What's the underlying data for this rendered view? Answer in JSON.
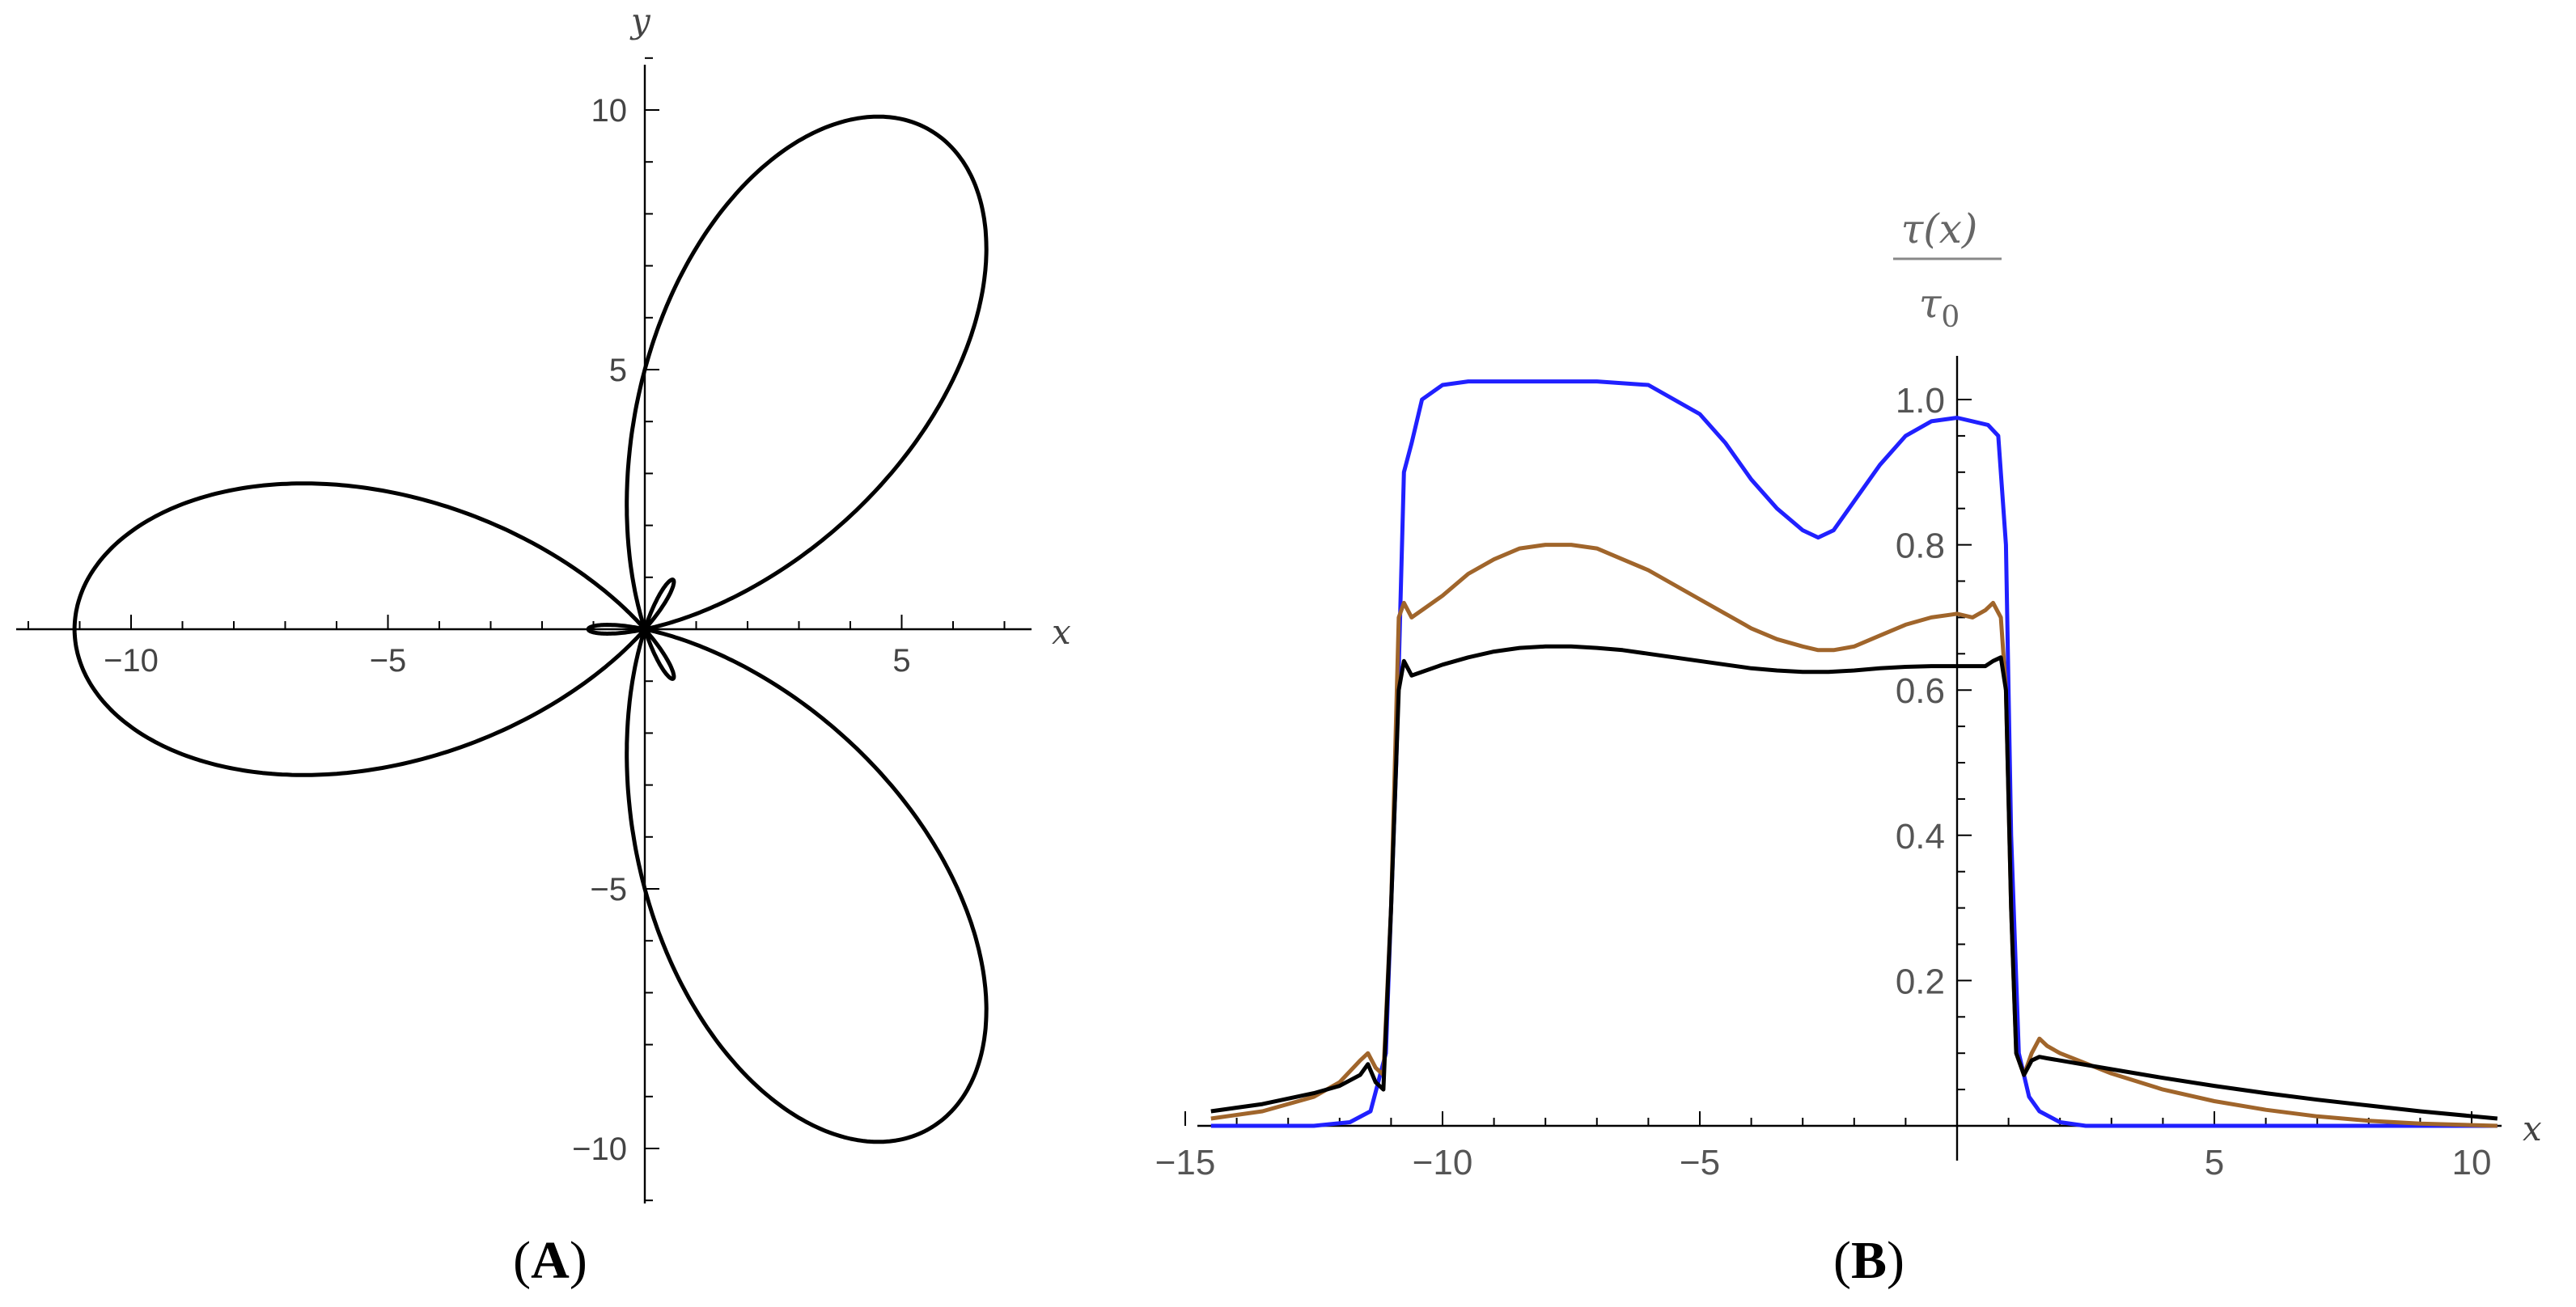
{
  "figure": {
    "panels": [
      "A",
      "B"
    ]
  },
  "chart_data": [
    {
      "panel": "A",
      "type": "line",
      "title": "",
      "xlabel": "x",
      "ylabel": "y",
      "xlim": [
        -12.5,
        7.5
      ],
      "ylim": [
        -11,
        11
      ],
      "xticks": [
        -10,
        -5,
        5
      ],
      "xtick_labels": [
        "−10",
        "−5",
        "5"
      ],
      "yticks": [
        -10,
        -5,
        5,
        10
      ],
      "ytick_labels": [
        "−10",
        "−5",
        "5",
        "10"
      ],
      "panel_label_open": "(",
      "panel_label_letter": "A",
      "panel_label_close": ")",
      "series": [
        {
          "name": "three-lobed curve",
          "color": "#000000",
          "parametric": "r(theta) = 5 + 6.1*cos(3*theta + pi)",
          "x_range": [
            -11.1,
            6.5
          ],
          "y_range": [
            -9.7,
            9.7
          ]
        }
      ]
    },
    {
      "panel": "B",
      "type": "line",
      "title": "",
      "xlabel": "x",
      "ylabel_numerator": "τ(x)",
      "ylabel_denominator": "τ",
      "ylabel_denominator_sub": "0",
      "xlim": [
        -15.5,
        11
      ],
      "ylim": [
        0,
        1.05
      ],
      "xticks": [
        -15,
        -10,
        -5,
        5,
        10
      ],
      "xtick_labels": [
        "−15",
        "−10",
        "−5",
        "5",
        "10"
      ],
      "yticks": [
        0.2,
        0.4,
        0.6,
        0.8,
        1.0
      ],
      "ytick_labels": [
        "0.2",
        "0.4",
        "0.6",
        "0.8",
        "1.0"
      ],
      "panel_label_open": "(",
      "panel_label_letter": "B",
      "panel_label_close": ")",
      "series": [
        {
          "name": "blue",
          "color": "#2020ff",
          "x": [
            -14.5,
            -12.5,
            -11.8,
            -11.4,
            -11.1,
            -10.9,
            -10.75,
            -10.6,
            -10.4,
            -10,
            -9.5,
            -8.5,
            -7,
            -6,
            -5,
            -4.5,
            -4,
            -3.5,
            -3,
            -2.7,
            -2.4,
            -2,
            -1.5,
            -1,
            -0.5,
            0,
            0.3,
            0.6,
            0.8,
            0.95,
            1.05,
            1.2,
            1.4,
            1.6,
            2,
            2.5,
            4,
            10.5
          ],
          "y": [
            0,
            0,
            0.005,
            0.02,
            0.1,
            0.5,
            0.9,
            0.94,
            1.0,
            1.02,
            1.025,
            1.025,
            1.025,
            1.02,
            0.98,
            0.94,
            0.89,
            0.85,
            0.82,
            0.81,
            0.82,
            0.86,
            0.91,
            0.95,
            0.97,
            0.975,
            0.97,
            0.965,
            0.95,
            0.8,
            0.4,
            0.1,
            0.04,
            0.02,
            0.005,
            0,
            0,
            0
          ]
        },
        {
          "name": "brown",
          "color": "#a0652b",
          "x": [
            -14.5,
            -13.5,
            -12.5,
            -12,
            -11.6,
            -11.45,
            -11.3,
            -11.15,
            -11.0,
            -10.85,
            -10.75,
            -10.6,
            -10.4,
            -10.0,
            -9.5,
            -9,
            -8.5,
            -8,
            -7.5,
            -7,
            -6.5,
            -6,
            -5.5,
            -5,
            -4.5,
            -4,
            -3.5,
            -3,
            -2.7,
            -2.4,
            -2,
            -1.5,
            -1,
            -0.5,
            0,
            0.3,
            0.55,
            0.7,
            0.85,
            0.95,
            1.05,
            1.15,
            1.3,
            1.45,
            1.6,
            1.75,
            2,
            3,
            4,
            5,
            6,
            7,
            8,
            9,
            10.5
          ],
          "y": [
            0.01,
            0.02,
            0.04,
            0.06,
            0.09,
            0.1,
            0.08,
            0.07,
            0.3,
            0.7,
            0.72,
            0.7,
            0.71,
            0.73,
            0.76,
            0.78,
            0.795,
            0.8,
            0.8,
            0.795,
            0.78,
            0.765,
            0.745,
            0.725,
            0.705,
            0.685,
            0.67,
            0.66,
            0.655,
            0.655,
            0.66,
            0.675,
            0.69,
            0.7,
            0.705,
            0.7,
            0.71,
            0.72,
            0.7,
            0.6,
            0.3,
            0.1,
            0.07,
            0.1,
            0.12,
            0.11,
            0.1,
            0.072,
            0.05,
            0.034,
            0.022,
            0.013,
            0.007,
            0.003,
            0
          ]
        },
        {
          "name": "black",
          "color": "#000000",
          "x": [
            -14.5,
            -13.5,
            -12.5,
            -12,
            -11.6,
            -11.45,
            -11.3,
            -11.15,
            -11.0,
            -10.85,
            -10.75,
            -10.6,
            -10.4,
            -10.0,
            -9.5,
            -9,
            -8.5,
            -8,
            -7.5,
            -7,
            -6.5,
            -6,
            -5.5,
            -5,
            -4.5,
            -4,
            -3.5,
            -3,
            -2.5,
            -2,
            -1.5,
            -1,
            -0.5,
            0,
            0.3,
            0.55,
            0.7,
            0.85,
            0.95,
            1.05,
            1.15,
            1.3,
            1.45,
            1.6,
            1.75,
            2,
            3,
            4,
            5,
            6,
            7,
            8,
            9,
            10.5
          ],
          "y": [
            0.02,
            0.03,
            0.045,
            0.055,
            0.07,
            0.085,
            0.06,
            0.05,
            0.3,
            0.6,
            0.64,
            0.62,
            0.625,
            0.635,
            0.645,
            0.653,
            0.658,
            0.66,
            0.66,
            0.658,
            0.655,
            0.65,
            0.645,
            0.64,
            0.635,
            0.63,
            0.627,
            0.625,
            0.625,
            0.627,
            0.63,
            0.632,
            0.633,
            0.633,
            0.633,
            0.633,
            0.64,
            0.645,
            0.6,
            0.3,
            0.1,
            0.07,
            0.09,
            0.095,
            0.093,
            0.09,
            0.078,
            0.066,
            0.055,
            0.045,
            0.036,
            0.028,
            0.02,
            0.01
          ]
        }
      ]
    }
  ]
}
